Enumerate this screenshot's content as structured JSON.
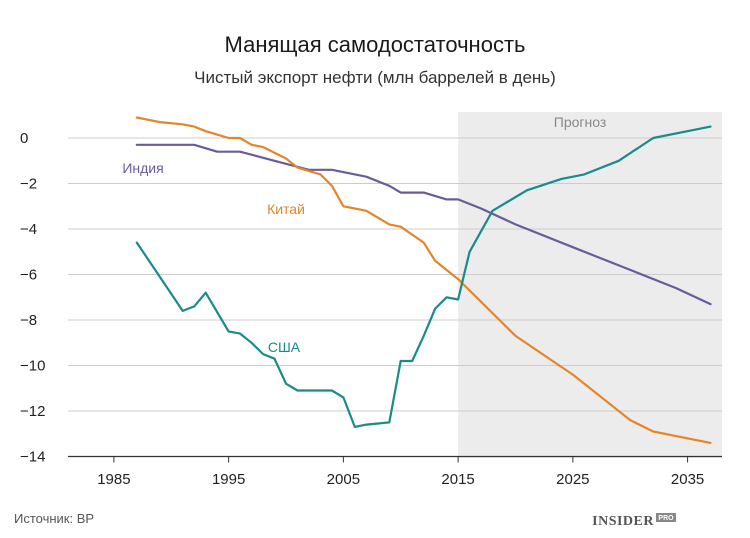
{
  "chart_data": {
    "type": "line",
    "title": "Манящая самодостаточность",
    "subtitle": "Чистый экспорт нефти (млн баррелей в день)",
    "xlabel": "",
    "ylabel": "",
    "xlim": [
      1981,
      2038
    ],
    "ylim": [
      -14,
      0.8
    ],
    "xticks": [
      1985,
      1995,
      2005,
      2015,
      2025,
      2035
    ],
    "yticks": [
      0,
      -2,
      -4,
      -6,
      -8,
      -10,
      -12,
      -14
    ],
    "grid": "horizontal",
    "forecast": {
      "label": "Прогноз",
      "from": 2015,
      "to": 2037,
      "color": "#ececec"
    },
    "series": [
      {
        "name": "Индия",
        "color": "#6b5b9a",
        "x": [
          1987,
          1990,
          1992,
          1994,
          1996,
          1999,
          2002,
          2004,
          2007,
          2009,
          2010,
          2012,
          2014,
          2015,
          2017,
          2020,
          2025,
          2030,
          2034,
          2037
        ],
        "y": [
          -0.3,
          -0.3,
          -0.3,
          -0.6,
          -0.6,
          -1.0,
          -1.4,
          -1.4,
          -1.7,
          -2.1,
          -2.4,
          -2.4,
          -2.7,
          -2.7,
          -3.1,
          -3.8,
          -4.8,
          -5.8,
          -6.6,
          -7.3
        ]
      },
      {
        "name": "Китай",
        "color": "#e5852a",
        "x": [
          1987,
          1989,
          1991,
          1992,
          1993,
          1995,
          1996,
          1997,
          1998,
          2000,
          2001,
          2003,
          2004,
          2005,
          2006,
          2007,
          2009,
          2010,
          2012,
          2013,
          2015,
          2020,
          2025,
          2030,
          2032,
          2037
        ],
        "y": [
          0.9,
          0.7,
          0.6,
          0.5,
          0.3,
          0.0,
          0.0,
          -0.3,
          -0.4,
          -0.9,
          -1.3,
          -1.6,
          -2.1,
          -3.0,
          -3.1,
          -3.2,
          -3.8,
          -3.9,
          -4.6,
          -5.4,
          -6.2,
          -8.7,
          -10.4,
          -12.4,
          -12.9,
          -13.4
        ]
      },
      {
        "name": "США",
        "color": "#1a8a8a",
        "x": [
          1987,
          1989,
          1991,
          1992,
          1993,
          1995,
          1996,
          1997,
          1998,
          1999,
          2000,
          2001,
          2002,
          2004,
          2005,
          2006,
          2007,
          2009,
          2010,
          2011,
          2012,
          2013,
          2014,
          2015,
          2016,
          2018,
          2021,
          2024,
          2026,
          2029,
          2032,
          2037
        ],
        "y": [
          -4.6,
          -6.1,
          -7.6,
          -7.4,
          -6.8,
          -8.5,
          -8.6,
          -9.0,
          -9.5,
          -9.7,
          -10.8,
          -11.1,
          -11.1,
          -11.1,
          -11.4,
          -12.7,
          -12.6,
          -12.5,
          -9.8,
          -9.8,
          -8.7,
          -7.5,
          -7.0,
          -7.1,
          -5.0,
          -3.2,
          -2.3,
          -1.8,
          -1.6,
          -1.0,
          0.0,
          0.5
        ]
      }
    ]
  },
  "footer": {
    "source": "Источник: BP",
    "brand": "INSIDER",
    "brand_suffix": "PRO"
  }
}
